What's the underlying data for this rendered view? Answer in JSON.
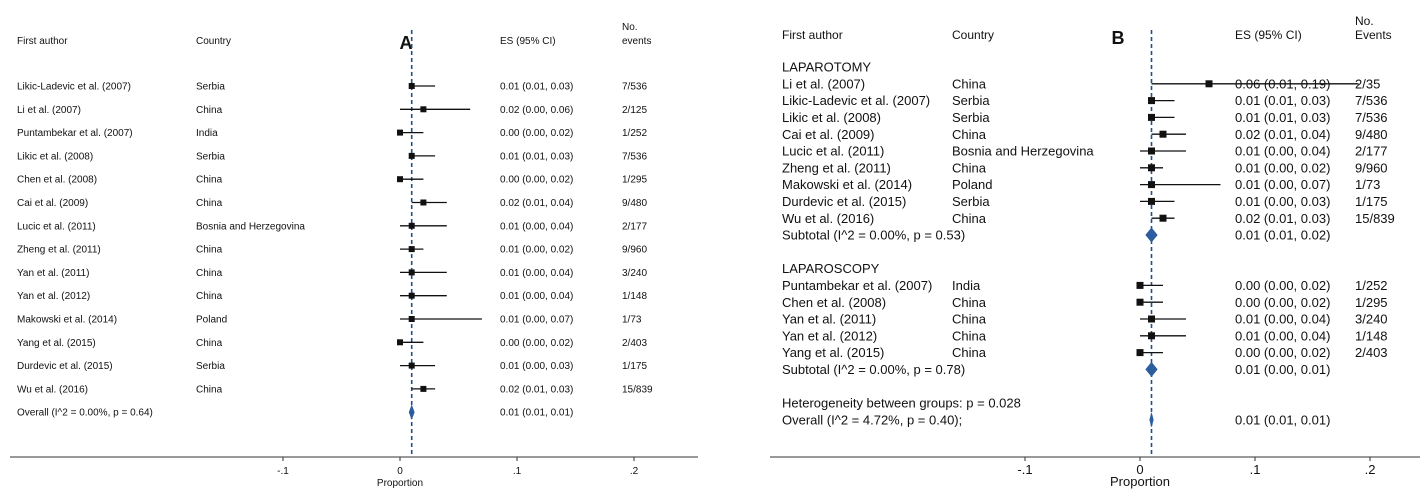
{
  "chart_data": [
    {
      "type": "forest",
      "panel_label": "A",
      "headers": {
        "author": "First author",
        "country": "Country",
        "es": "ES (95% CI)",
        "events_1": "No.",
        "events_2": "events"
      },
      "xlabel": "Proportion",
      "xticks": [
        "-.1",
        "0",
        ".1",
        ".2"
      ],
      "xtick_values": [
        -0.1,
        0,
        0.1,
        0.2
      ],
      "xlim": [
        -0.1,
        0.2
      ],
      "reference_line": 0.01,
      "rows": [
        {
          "author": "Likic-Ladevic et al. (2007)",
          "country": "Serbia",
          "es": 0.01,
          "lo": 0.01,
          "hi": 0.03,
          "es_text": "0.01 (0.01, 0.03)",
          "events": "7/536"
        },
        {
          "author": "Li et al. (2007)",
          "country": "China",
          "es": 0.02,
          "lo": 0.0,
          "hi": 0.06,
          "es_text": "0.02 (0.00, 0.06)",
          "events": "2/125"
        },
        {
          "author": "Puntambekar et al. (2007)",
          "country": "India",
          "es": 0.0,
          "lo": 0.0,
          "hi": 0.02,
          "es_text": "0.00 (0.00, 0.02)",
          "events": "1/252"
        },
        {
          "author": "Likic et al. (2008)",
          "country": "Serbia",
          "es": 0.01,
          "lo": 0.01,
          "hi": 0.03,
          "es_text": "0.01 (0.01, 0.03)",
          "events": "7/536"
        },
        {
          "author": "Chen et al. (2008)",
          "country": "China",
          "es": 0.0,
          "lo": 0.0,
          "hi": 0.02,
          "es_text": "0.00 (0.00, 0.02)",
          "events": "1/295"
        },
        {
          "author": "Cai et al. (2009)",
          "country": "China",
          "es": 0.02,
          "lo": 0.01,
          "hi": 0.04,
          "es_text": "0.02 (0.01, 0.04)",
          "events": "9/480"
        },
        {
          "author": "Lucic et al. (2011)",
          "country": "Bosnia and Herzegovina",
          "es": 0.01,
          "lo": 0.0,
          "hi": 0.04,
          "es_text": "0.01 (0.00, 0.04)",
          "events": "2/177"
        },
        {
          "author": "Zheng et al. (2011)",
          "country": "China",
          "es": 0.01,
          "lo": 0.0,
          "hi": 0.02,
          "es_text": "0.01 (0.00, 0.02)",
          "events": "9/960"
        },
        {
          "author": "Yan et al. (2011)",
          "country": "China",
          "es": 0.01,
          "lo": 0.0,
          "hi": 0.04,
          "es_text": "0.01 (0.00, 0.04)",
          "events": "3/240"
        },
        {
          "author": "Yan et al. (2012)",
          "country": "China",
          "es": 0.01,
          "lo": 0.0,
          "hi": 0.04,
          "es_text": "0.01 (0.00, 0.04)",
          "events": "1/148"
        },
        {
          "author": "Makowski et al. (2014)",
          "country": "Poland",
          "es": 0.01,
          "lo": 0.0,
          "hi": 0.07,
          "es_text": "0.01 (0.00, 0.07)",
          "events": "1/73"
        },
        {
          "author": "Yang et al. (2015)",
          "country": "China",
          "es": 0.0,
          "lo": 0.0,
          "hi": 0.02,
          "es_text": "0.00 (0.00, 0.02)",
          "events": "2/403"
        },
        {
          "author": "Durdevic et al. (2015)",
          "country": "Serbia",
          "es": 0.01,
          "lo": 0.0,
          "hi": 0.03,
          "es_text": "0.01 (0.00, 0.03)",
          "events": "1/175"
        },
        {
          "author": "Wu et al. (2016)",
          "country": "China",
          "es": 0.02,
          "lo": 0.01,
          "hi": 0.03,
          "es_text": "0.02 (0.01, 0.03)",
          "events": "15/839"
        },
        {
          "kind": "overall",
          "author": "Overall  (I^2 = 0.00%, p = 0.64)",
          "es": 0.01,
          "lo": 0.01,
          "hi": 0.01,
          "es_text": "0.01 (0.01, 0.01)"
        }
      ]
    },
    {
      "type": "forest",
      "panel_label": "B",
      "headers": {
        "author": "First author",
        "country": "Country",
        "es": "ES (95% CI)",
        "events_1": "No.",
        "events_2": "Events"
      },
      "xlabel": "Proportion",
      "xticks": [
        "-.1",
        "0",
        ".1",
        ".2"
      ],
      "xtick_values": [
        -0.1,
        0,
        0.1,
        0.2
      ],
      "xlim": [
        -0.1,
        0.2
      ],
      "reference_line": 0.01,
      "rows": [
        {
          "kind": "group",
          "author": "LAPAROTOMY"
        },
        {
          "author": "Li et al. (2007)",
          "country": "China",
          "es": 0.06,
          "lo": 0.01,
          "hi": 0.19,
          "es_text": "0.06 (0.01, 0.19)",
          "events": "2/35"
        },
        {
          "author": "Likic-Ladevic et al. (2007)",
          "country": "Serbia",
          "es": 0.01,
          "lo": 0.01,
          "hi": 0.03,
          "es_text": "0.01 (0.01, 0.03)",
          "events": "7/536"
        },
        {
          "author": "Likic et al. (2008)",
          "country": "Serbia",
          "es": 0.01,
          "lo": 0.01,
          "hi": 0.03,
          "es_text": "0.01 (0.01, 0.03)",
          "events": "7/536"
        },
        {
          "author": "Cai et al. (2009)",
          "country": "China",
          "es": 0.02,
          "lo": 0.01,
          "hi": 0.04,
          "es_text": "0.02 (0.01, 0.04)",
          "events": "9/480"
        },
        {
          "author": "Lucic et al. (2011)",
          "country": "Bosnia and Herzegovina",
          "es": 0.01,
          "lo": 0.0,
          "hi": 0.04,
          "es_text": "0.01 (0.00, 0.04)",
          "events": "2/177"
        },
        {
          "author": "Zheng et al. (2011)",
          "country": "China",
          "es": 0.01,
          "lo": 0.0,
          "hi": 0.02,
          "es_text": "0.01 (0.00, 0.02)",
          "events": "9/960"
        },
        {
          "author": "Makowski et al. (2014)",
          "country": "Poland",
          "es": 0.01,
          "lo": 0.0,
          "hi": 0.07,
          "es_text": "0.01 (0.00, 0.07)",
          "events": "1/73"
        },
        {
          "author": "Durdevic et al. (2015)",
          "country": "Serbia",
          "es": 0.01,
          "lo": 0.0,
          "hi": 0.03,
          "es_text": "0.01 (0.00, 0.03)",
          "events": "1/175"
        },
        {
          "author": "Wu et al. (2016)",
          "country": "China",
          "es": 0.02,
          "lo": 0.01,
          "hi": 0.03,
          "es_text": "0.02 (0.01, 0.03)",
          "events": "15/839"
        },
        {
          "kind": "subtotal",
          "author": "Subtotal  (I^2 = 0.00%, p = 0.53)",
          "es": 0.01,
          "lo": 0.01,
          "hi": 0.02,
          "es_text": "0.01 (0.01, 0.02)"
        },
        {
          "kind": "blank"
        },
        {
          "kind": "group",
          "author": "LAPAROSCOPY"
        },
        {
          "author": "Puntambekar et al. (2007)",
          "country": "India",
          "es": 0.0,
          "lo": 0.0,
          "hi": 0.02,
          "es_text": "0.00 (0.00, 0.02)",
          "events": "1/252"
        },
        {
          "author": "Chen et al. (2008)",
          "country": "China",
          "es": 0.0,
          "lo": 0.0,
          "hi": 0.02,
          "es_text": "0.00 (0.00, 0.02)",
          "events": "1/295"
        },
        {
          "author": "Yan et al. (2011)",
          "country": "China",
          "es": 0.01,
          "lo": 0.0,
          "hi": 0.04,
          "es_text": "0.01 (0.00, 0.04)",
          "events": "3/240"
        },
        {
          "author": "Yan et al. (2012)",
          "country": "China",
          "es": 0.01,
          "lo": 0.0,
          "hi": 0.04,
          "es_text": "0.01 (0.00, 0.04)",
          "events": "1/148"
        },
        {
          "author": "Yang et al. (2015)",
          "country": "China",
          "es": 0.0,
          "lo": 0.0,
          "hi": 0.02,
          "es_text": "0.00 (0.00, 0.02)",
          "events": "2/403"
        },
        {
          "kind": "subtotal",
          "author": "Subtotal  (I^2 = 0.00%, p = 0.78)",
          "es": 0.01,
          "lo": 0.0,
          "hi": 0.01,
          "es_text": "0.01 (0.00, 0.01)"
        },
        {
          "kind": "blank"
        },
        {
          "kind": "note",
          "author": "Heterogeneity between groups: p = 0.028"
        },
        {
          "kind": "overall",
          "author": "Overall  (I^2 = 4.72%, p = 0.40);",
          "es": 0.01,
          "lo": 0.01,
          "hi": 0.01,
          "es_text": "0.01 (0.01, 0.01)"
        }
      ]
    }
  ],
  "colors": {
    "text": "#111111",
    "marker": "#111111",
    "reference_line": "#1f4e8c",
    "diamond": "#2c5d9e",
    "axis": "#333333"
  }
}
